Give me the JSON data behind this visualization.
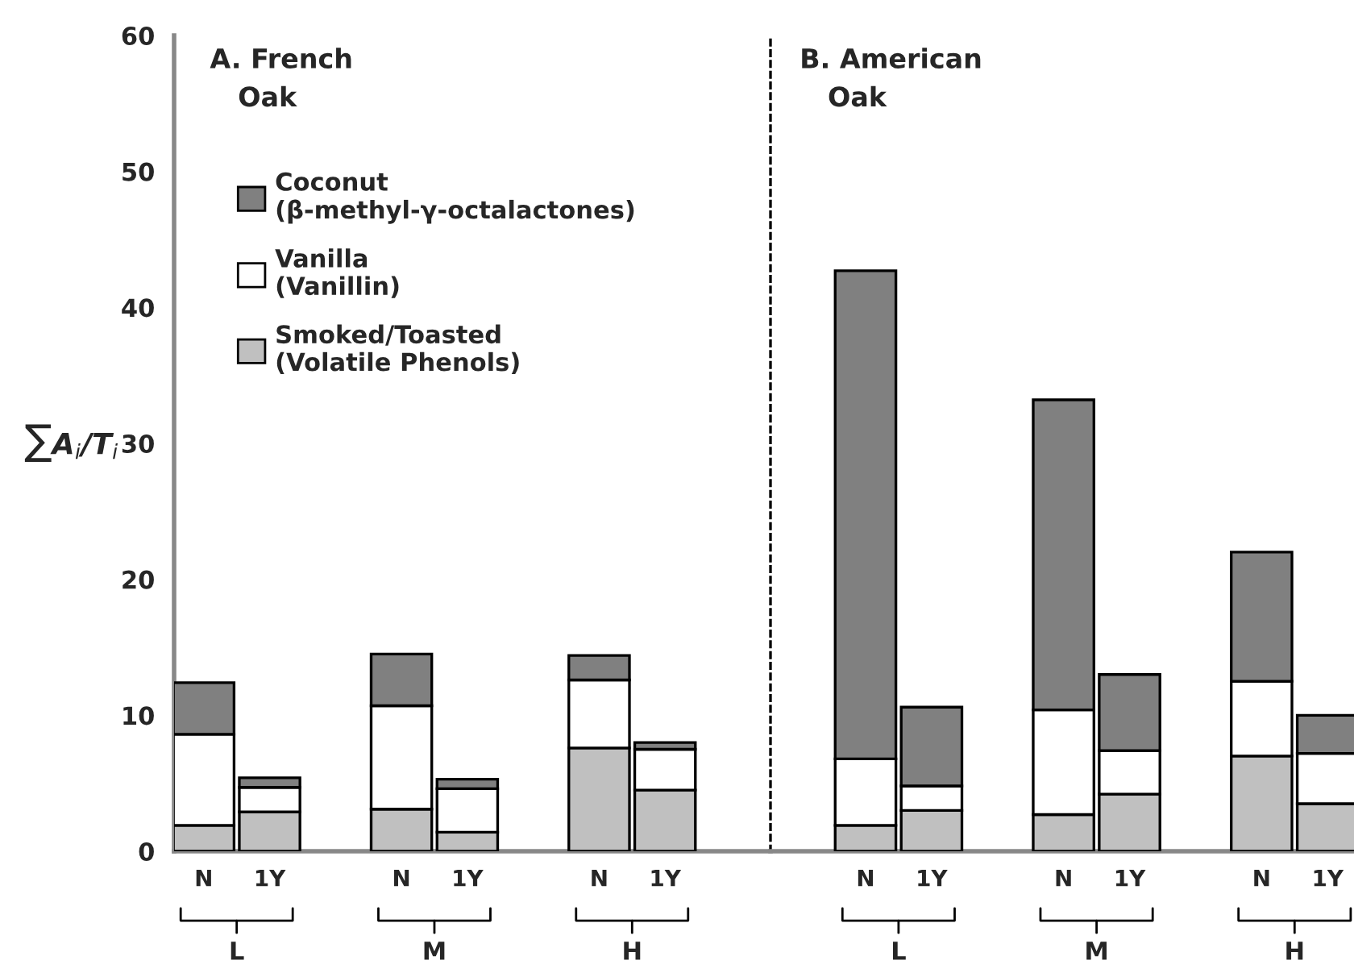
{
  "chart_data": [
    {
      "type": "bar",
      "stacked": true,
      "title": "A. French Oak",
      "ylabel": "∑A$_{i}$/T$_{i}$",
      "categories": [
        "N",
        "1Y",
        "N",
        "1Y",
        "N",
        "1Y"
      ],
      "series": [
        {
          "name": "Smoked/Toasted\n(Volatile Phenols)",
          "color": "#c0c0c0",
          "values": [
            1.9,
            2.9,
            3.1,
            1.4,
            7.6,
            4.5
          ]
        },
        {
          "name": "Vanilla\n(Vanillin)",
          "color": "#ffffff",
          "values": [
            6.7,
            1.8,
            7.6,
            3.2,
            5.0,
            3.0
          ]
        },
        {
          "name": "Coconut\n(β-methyl-γ-octalactones)",
          "color": "#808080",
          "values": [
            3.8,
            0.7,
            3.8,
            0.7,
            1.8,
            0.5
          ]
        }
      ],
      "annotations": [
        "L",
        "M",
        "H"
      ],
      "ylim": [
        0,
        60
      ],
      "yticks": [
        0,
        10,
        20,
        30,
        40,
        50,
        60
      ],
      "grid": false,
      "legend": "top left"
    },
    {
      "type": "bar",
      "stacked": true,
      "title": "B. American Oak",
      "categories": [
        "N",
        "1Y",
        "N",
        "1Y",
        "N",
        "1Y"
      ],
      "series": [
        {
          "color": "#c0c0c0",
          "values": [
            1.9,
            3.0,
            2.7,
            4.2,
            7.0,
            3.5
          ]
        },
        {
          "color": "#ffffff",
          "values": [
            4.9,
            1.8,
            7.7,
            3.2,
            5.5,
            3.7
          ]
        },
        {
          "color": "#808080",
          "values": [
            35.9,
            5.8,
            22.8,
            5.6,
            9.5,
            2.8
          ]
        }
      ],
      "annotations": [
        "L",
        "M",
        "H"
      ],
      "ylim": [
        0,
        60
      ],
      "tick_labels": "x",
      "grid": false
    }
  ]
}
